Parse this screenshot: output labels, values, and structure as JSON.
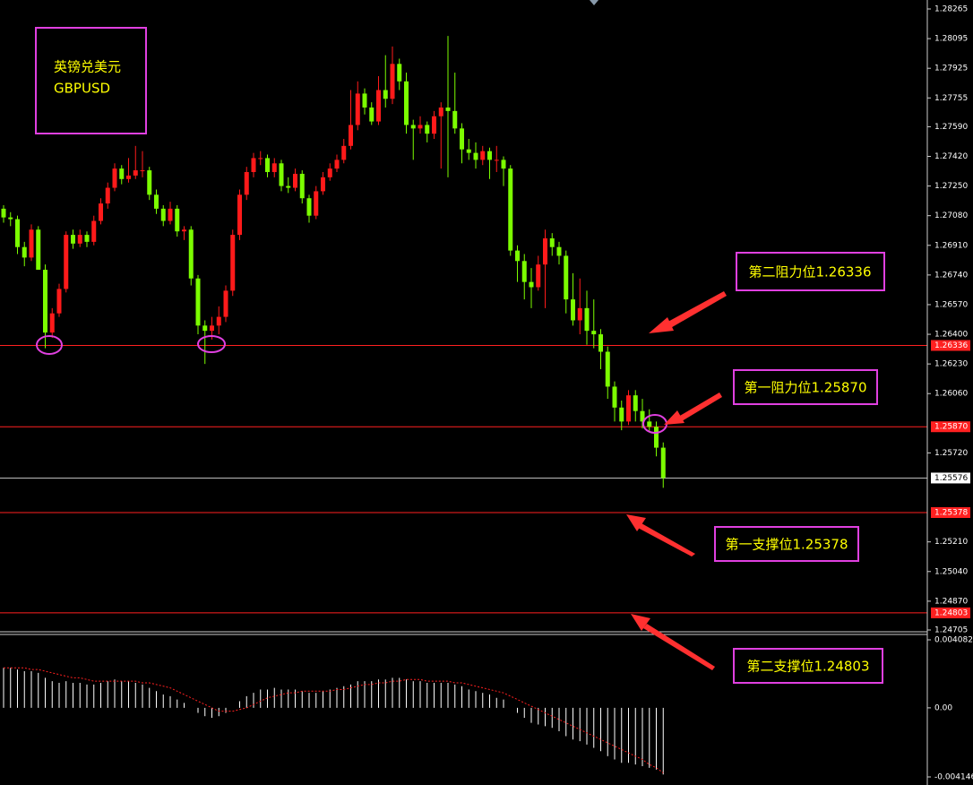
{
  "chart_data": [
    {
      "type": "candlestick",
      "title": "英镑兑美元",
      "subtitle": "GBPUSD",
      "up_color": "#ff1a1a",
      "down_color": "#7cfc00",
      "ylim": [
        1.24705,
        1.28265
      ],
      "yticks": [
        1.28265,
        1.28095,
        1.27925,
        1.27755,
        {
          "value": 1.2759,
          "label": "1.27590"
        },
        {
          "value": 1.2742,
          "label": "1.27420"
        },
        {
          "value": 1.2725,
          "label": "1.27250"
        },
        {
          "value": 1.2708,
          "label": "1.27080"
        },
        {
          "value": 1.2691,
          "label": "1.26910"
        },
        {
          "value": 1.2674,
          "label": "1.26740"
        },
        {
          "value": 1.2657,
          "label": "1.26570"
        },
        {
          "value": 1.264,
          "label": "1.26400"
        },
        {
          "value": 1.2623,
          "label": "1.26230"
        },
        {
          "value": 1.2606,
          "label": "1.26060"
        },
        {
          "value": 1.2572,
          "label": "1.25720"
        },
        {
          "value": 1.2521,
          "label": "1.25210"
        },
        {
          "value": 1.2504,
          "label": "1.25040"
        },
        {
          "value": 1.2487,
          "label": "1.24870"
        },
        1.24705
      ],
      "levels": [
        1.26336,
        {
          "value": 1.2587,
          "label": "1.25870"
        },
        1.25378,
        1.24803
      ],
      "level_color": "#ff2020",
      "current_price": 1.25576,
      "annotations": [
        "第二阻力位1.26336",
        "第一阻力位1.25870",
        "第一支撑位1.25378",
        "第二支撑位1.24803"
      ],
      "candles": [
        [
          1.2712,
          1.2714,
          1.2704,
          1.2707
        ],
        [
          1.2707,
          1.271,
          1.2702,
          1.2706
        ],
        [
          1.2706,
          1.2708,
          1.2686,
          1.269
        ],
        [
          1.269,
          1.2693,
          1.2679,
          1.2684
        ],
        [
          1.2684,
          1.2703,
          1.2682,
          1.27
        ],
        [
          1.27,
          1.2702,
          1.2677,
          1.2677
        ],
        [
          1.2677,
          1.268,
          1.2632,
          1.2641
        ],
        [
          1.2641,
          1.2655,
          1.2638,
          1.2652
        ],
        [
          1.2652,
          1.2669,
          1.265,
          1.2666
        ],
        [
          1.2666,
          1.2699,
          1.2664,
          1.2697
        ],
        [
          1.2697,
          1.27,
          1.2689,
          1.2692
        ],
        [
          1.2692,
          1.27,
          1.269,
          1.2697
        ],
        [
          1.2697,
          1.2699,
          1.269,
          1.2693
        ],
        [
          1.2693,
          1.2708,
          1.2691,
          1.2705
        ],
        [
          1.2705,
          1.2718,
          1.2703,
          1.2715
        ],
        [
          1.2715,
          1.2727,
          1.2712,
          1.2724
        ],
        [
          1.2724,
          1.2738,
          1.2722,
          1.2735
        ],
        [
          1.2735,
          1.2737,
          1.2726,
          1.2729
        ],
        [
          1.2729,
          1.2741,
          1.2727,
          1.2731
        ],
        [
          1.2731,
          1.2748,
          1.2729,
          1.2734
        ],
        [
          1.2734,
          1.2745,
          1.273,
          1.2734
        ],
        [
          1.2734,
          1.2736,
          1.2717,
          1.272
        ],
        [
          1.272,
          1.2723,
          1.2709,
          1.2712
        ],
        [
          1.2712,
          1.2714,
          1.2702,
          1.2705
        ],
        [
          1.2705,
          1.2716,
          1.2703,
          1.2712
        ],
        [
          1.2712,
          1.2714,
          1.2696,
          1.2699
        ],
        [
          1.2699,
          1.2702,
          1.2694,
          1.27
        ],
        [
          1.27,
          1.2702,
          1.2668,
          1.2672
        ],
        [
          1.2672,
          1.2674,
          1.264,
          1.2645
        ],
        [
          1.2645,
          1.2648,
          1.2623,
          1.2642
        ],
        [
          1.2642,
          1.265,
          1.2637,
          1.2645
        ],
        [
          1.2645,
          1.2656,
          1.264,
          1.265
        ],
        [
          1.265,
          1.2668,
          1.2647,
          1.2665
        ],
        [
          1.2665,
          1.27,
          1.2662,
          1.2697
        ],
        [
          1.2697,
          1.2723,
          1.2694,
          1.272
        ],
        [
          1.272,
          1.2736,
          1.2717,
          1.2733
        ],
        [
          1.2733,
          1.2744,
          1.273,
          1.2741
        ],
        [
          1.2741,
          1.2745,
          1.2737,
          1.2741
        ],
        [
          1.2741,
          1.2743,
          1.273,
          1.2733
        ],
        [
          1.2733,
          1.2741,
          1.273,
          1.2738
        ],
        [
          1.2738,
          1.274,
          1.2722,
          1.2725
        ],
        [
          1.2725,
          1.273,
          1.2721,
          1.2724
        ],
        [
          1.2724,
          1.2735,
          1.2722,
          1.2732
        ],
        [
          1.2732,
          1.2734,
          1.2715,
          1.2718
        ],
        [
          1.2718,
          1.272,
          1.2704,
          1.2708
        ],
        [
          1.2708,
          1.2725,
          1.2706,
          1.2722
        ],
        [
          1.2722,
          1.2733,
          1.272,
          1.273
        ],
        [
          1.273,
          1.2738,
          1.2728,
          1.2735
        ],
        [
          1.2735,
          1.2743,
          1.2733,
          1.274
        ],
        [
          1.274,
          1.2752,
          1.2738,
          1.2748
        ],
        [
          1.2748,
          1.278,
          1.2746,
          1.276
        ],
        [
          1.276,
          1.2785,
          1.2757,
          1.2778
        ],
        [
          1.2778,
          1.2781,
          1.2766,
          1.277
        ],
        [
          1.277,
          1.2773,
          1.276,
          1.2762
        ],
        [
          1.2762,
          1.2788,
          1.276,
          1.278
        ],
        [
          1.278,
          1.28,
          1.277,
          1.2775
        ],
        [
          1.2775,
          1.2805,
          1.2772,
          1.2795
        ],
        [
          1.2795,
          1.2798,
          1.278,
          1.2785
        ],
        [
          1.2785,
          1.279,
          1.2755,
          1.276
        ],
        [
          1.276,
          1.2763,
          1.274,
          1.2758
        ],
        [
          1.2758,
          1.2765,
          1.2755,
          1.276
        ],
        [
          1.276,
          1.2762,
          1.275,
          1.2755
        ],
        [
          1.2755,
          1.2768,
          1.2752,
          1.2765
        ],
        [
          1.2765,
          1.2773,
          1.2735,
          1.277
        ],
        [
          1.277,
          1.2811,
          1.273,
          1.2768
        ],
        [
          1.2768,
          1.279,
          1.2755,
          1.2758
        ],
        [
          1.2758,
          1.2761,
          1.2738,
          1.2746
        ],
        [
          1.2746,
          1.2752,
          1.274,
          1.2744
        ],
        [
          1.2744,
          1.275,
          1.2735,
          1.274
        ],
        [
          1.274,
          1.2748,
          1.2737,
          1.2745
        ],
        [
          1.2745,
          1.2747,
          1.2729,
          1.274
        ],
        [
          1.274,
          1.2748,
          1.2733,
          1.274
        ],
        [
          1.274,
          1.2742,
          1.2725,
          1.2735
        ],
        [
          1.2735,
          1.2737,
          1.2685,
          1.2688
        ],
        [
          1.2688,
          1.2691,
          1.267,
          1.2682
        ],
        [
          1.2682,
          1.2686,
          1.266,
          1.267
        ],
        [
          1.267,
          1.2678,
          1.2655,
          1.2667
        ],
        [
          1.2667,
          1.2685,
          1.2665,
          1.268
        ],
        [
          1.268,
          1.27,
          1.2655,
          1.2695
        ],
        [
          1.2695,
          1.2698,
          1.2685,
          1.269
        ],
        [
          1.269,
          1.2693,
          1.268,
          1.2685
        ],
        [
          1.2685,
          1.2688,
          1.2652,
          1.266
        ],
        [
          1.266,
          1.2675,
          1.2645,
          1.2648
        ],
        [
          1.2648,
          1.2672,
          1.264,
          1.2655
        ],
        [
          1.2655,
          1.2665,
          1.2634,
          1.2642
        ],
        [
          1.2642,
          1.266,
          1.2632,
          1.264
        ],
        [
          1.264,
          1.2643,
          1.262,
          1.263
        ],
        [
          1.263,
          1.2633,
          1.2603,
          1.261
        ],
        [
          1.261,
          1.2613,
          1.259,
          1.2598
        ],
        [
          1.2598,
          1.2602,
          1.2585,
          1.259
        ],
        [
          1.259,
          1.2608,
          1.2588,
          1.2605
        ],
        [
          1.2605,
          1.2608,
          1.259,
          1.2596
        ],
        [
          1.2596,
          1.2603,
          1.2586,
          1.259
        ],
        [
          1.259,
          1.2597,
          1.2584,
          1.2587
        ],
        [
          1.2587,
          1.259,
          1.257,
          1.2575
        ],
        [
          1.2575,
          1.2578,
          1.2552,
          1.25576
        ]
      ]
    },
    {
      "type": "macd",
      "ylim": [
        -0.004146,
        0.004082
      ],
      "yticks": [
        0.004082,
        {
          "value": 0,
          "label": "0.00"
        },
        -0.004146
      ],
      "histogram_color": "#ffffff",
      "signal_color": "#ff2020",
      "histogram": [
        0.0024,
        0.0024,
        0.0023,
        0.0022,
        0.0022,
        0.0021,
        0.0018,
        0.0016,
        0.0015,
        0.0016,
        0.0015,
        0.0015,
        0.0014,
        0.0014,
        0.0015,
        0.0016,
        0.0017,
        0.0016,
        0.0016,
        0.0015,
        0.0014,
        0.0012,
        0.001,
        0.0008,
        0.0007,
        0.0005,
        0.0003,
        0,
        -0.0003,
        -0.0005,
        -0.0006,
        -0.0005,
        -0.0003,
        0,
        0.0004,
        0.0007,
        0.0009,
        0.0011,
        0.0011,
        0.0012,
        0.0011,
        0.0011,
        0.0011,
        0.001,
        0.0009,
        0.0009,
        0.001,
        0.0011,
        0.0012,
        0.0013,
        0.0014,
        0.0016,
        0.0016,
        0.0016,
        0.0017,
        0.0017,
        0.0018,
        0.0018,
        0.0017,
        0.0016,
        0.0016,
        0.0015,
        0.0015,
        0.0015,
        0.0015,
        0.0014,
        0.0013,
        0.0011,
        0.001,
        0.0009,
        0.0008,
        0.0006,
        0.0005,
        0,
        -0.0003,
        -0.0006,
        -0.0009,
        -0.001,
        -0.0011,
        -0.0012,
        -0.0014,
        -0.0017,
        -0.0019,
        -0.002,
        -0.0022,
        -0.0024,
        -0.0026,
        -0.0029,
        -0.0031,
        -0.0033,
        -0.0033,
        -0.0034,
        -0.0035,
        -0.0036,
        -0.0037,
        -0.004
      ],
      "signal": [
        0.0024,
        0.0024,
        0.0024,
        0.0024,
        0.0023,
        0.0023,
        0.0022,
        0.0021,
        0.002,
        0.0019,
        0.0018,
        0.0018,
        0.0017,
        0.0016,
        0.0016,
        0.0016,
        0.0016,
        0.0016,
        0.0016,
        0.0016,
        0.0015,
        0.0015,
        0.0014,
        0.0013,
        0.0012,
        0.001,
        0.0008,
        0.0006,
        0.0004,
        0.0002,
        0,
        -0.0002,
        -0.0002,
        -0.0002,
        -0.0001,
        0,
        0.0002,
        0.0004,
        0.0006,
        0.0007,
        0.0008,
        0.0009,
        0.0009,
        0.001,
        0.001,
        0.001,
        0.001,
        0.001,
        0.0011,
        0.0011,
        0.0012,
        0.0013,
        0.0014,
        0.0014,
        0.0015,
        0.0015,
        0.0016,
        0.0016,
        0.0017,
        0.0017,
        0.0017,
        0.0016,
        0.0016,
        0.0016,
        0.0016,
        0.0015,
        0.0015,
        0.0014,
        0.0013,
        0.0012,
        0.0011,
        0.001,
        0.0009,
        0.0007,
        0.0005,
        0.0003,
        0.0001,
        -0.0001,
        -0.0003,
        -0.0005,
        -0.0007,
        -0.0009,
        -0.0011,
        -0.0013,
        -0.0015,
        -0.0017,
        -0.0019,
        -0.0021,
        -0.0023,
        -0.0025,
        -0.0027,
        -0.0029,
        -0.0031,
        -0.0034,
        -0.0036,
        -0.0039
      ]
    }
  ]
}
